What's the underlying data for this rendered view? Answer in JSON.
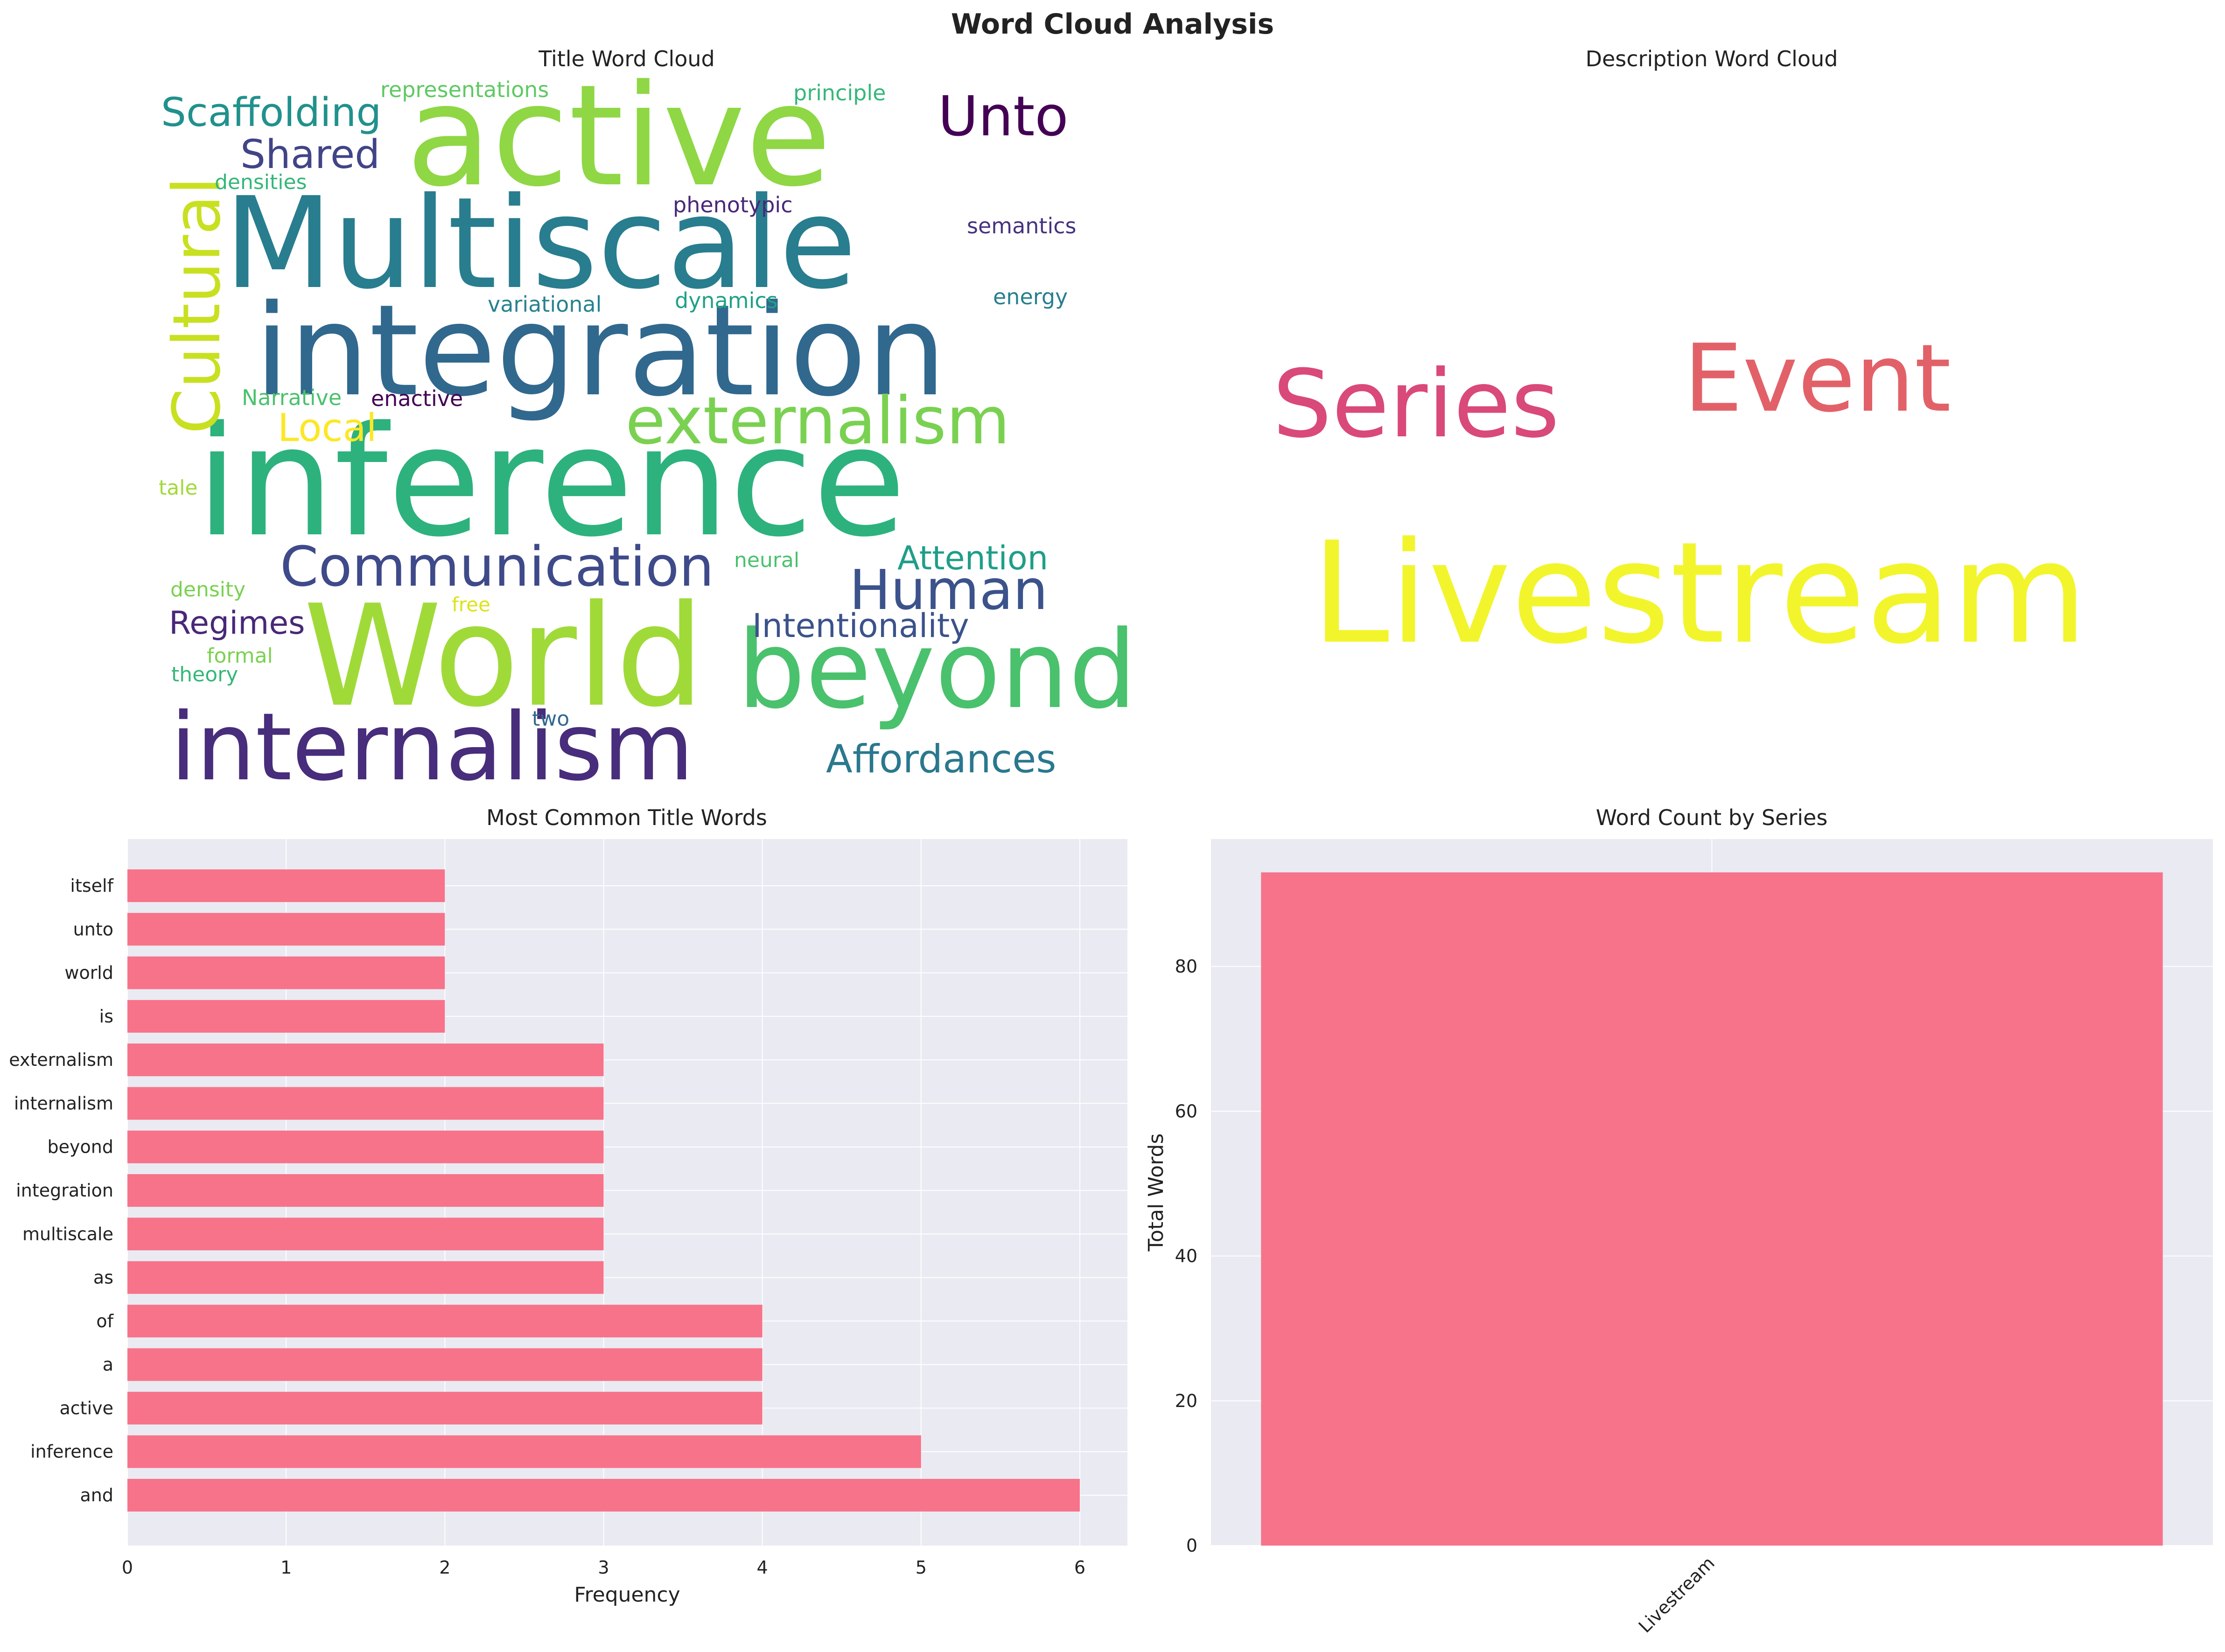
{
  "figure": {
    "title": "Word Cloud Analysis"
  },
  "chart_data": [
    {
      "type": "wordcloud",
      "title": "Title Word Cloud",
      "words": [
        {
          "text": "inference",
          "size": 1.0,
          "color": "#2db27d",
          "rotate": 0
        },
        {
          "text": "active",
          "size": 0.95,
          "color": "#8fd744",
          "rotate": 0
        },
        {
          "text": "World",
          "size": 0.95,
          "color": "#a0da39",
          "rotate": 0
        },
        {
          "text": "Multiscale",
          "size": 0.9,
          "color": "#287d8e",
          "rotate": 0
        },
        {
          "text": "integration",
          "size": 0.9,
          "color": "#31688e",
          "rotate": 0
        },
        {
          "text": "internalism",
          "size": 0.72,
          "color": "#472d7b",
          "rotate": 0
        },
        {
          "text": "beyond",
          "size": 0.7,
          "color": "#4ac16d",
          "rotate": 0
        },
        {
          "text": "externalism",
          "size": 0.48,
          "color": "#7ad151",
          "rotate": 0
        },
        {
          "text": "Cultural",
          "size": 0.42,
          "color": "#c8e020",
          "rotate": 90
        },
        {
          "text": "Human",
          "size": 0.42,
          "color": "#3b528b",
          "rotate": 0
        },
        {
          "text": "Unto",
          "size": 0.42,
          "color": "#440154",
          "rotate": 0
        },
        {
          "text": "Communication",
          "size": 0.42,
          "color": "#3e4a89",
          "rotate": 0
        },
        {
          "text": "Scaffolding",
          "size": 0.3,
          "color": "#21918c",
          "rotate": 0
        },
        {
          "text": "Shared",
          "size": 0.3,
          "color": "#414487",
          "rotate": 0
        },
        {
          "text": "Affordances",
          "size": 0.3,
          "color": "#2a788e",
          "rotate": 0
        },
        {
          "text": "Local",
          "size": 0.3,
          "color": "#fde725",
          "rotate": 0
        },
        {
          "text": "Attention",
          "size": 0.26,
          "color": "#1f9e89",
          "rotate": 0
        },
        {
          "text": "Intentionality",
          "size": 0.26,
          "color": "#3b528b",
          "rotate": 0
        },
        {
          "text": "Regimes",
          "size": 0.26,
          "color": "#482878",
          "rotate": 0
        },
        {
          "text": "representations",
          "size": 0.16,
          "color": "#5ec962",
          "rotate": 0
        },
        {
          "text": "principle",
          "size": 0.16,
          "color": "#35b779",
          "rotate": 0
        },
        {
          "text": "densities",
          "size": 0.14,
          "color": "#35b779",
          "rotate": 0
        },
        {
          "text": "phenotypic",
          "size": 0.16,
          "color": "#482878",
          "rotate": 0
        },
        {
          "text": "semantics",
          "size": 0.16,
          "color": "#46327e",
          "rotate": 0
        },
        {
          "text": "variational",
          "size": 0.16,
          "color": "#26828e",
          "rotate": 0
        },
        {
          "text": "dynamics",
          "size": 0.16,
          "color": "#1fa187",
          "rotate": 0
        },
        {
          "text": "energy",
          "size": 0.16,
          "color": "#277f8e",
          "rotate": 0
        },
        {
          "text": "Narrative",
          "size": 0.16,
          "color": "#4ac16d",
          "rotate": 0
        },
        {
          "text": "enactive",
          "size": 0.16,
          "color": "#440154",
          "rotate": 0
        },
        {
          "text": "tale",
          "size": 0.14,
          "color": "#a0da39",
          "rotate": 0
        },
        {
          "text": "neural",
          "size": 0.14,
          "color": "#4ac16d",
          "rotate": 0
        },
        {
          "text": "density",
          "size": 0.14,
          "color": "#7ad151",
          "rotate": 0
        },
        {
          "text": "free",
          "size": 0.14,
          "color": "#dde318",
          "rotate": 0
        },
        {
          "text": "formal",
          "size": 0.14,
          "color": "#7ad151",
          "rotate": 0
        },
        {
          "text": "theory",
          "size": 0.14,
          "color": "#35b779",
          "rotate": 0
        },
        {
          "text": "two",
          "size": 0.14,
          "color": "#31688e",
          "rotate": 0
        }
      ]
    },
    {
      "type": "wordcloud",
      "title": "Description Word Cloud",
      "words": [
        {
          "text": "Livestream",
          "size": 1.0,
          "color": "#f2f52b",
          "rotate": 0
        },
        {
          "text": "Series",
          "size": 0.62,
          "color": "#d9497a",
          "rotate": 0
        },
        {
          "text": "Event",
          "size": 0.62,
          "color": "#e26169",
          "rotate": 0
        }
      ]
    },
    {
      "type": "bar",
      "orientation": "horizontal",
      "title": "Most Common Title Words",
      "xlabel": "Frequency",
      "ylabel": "",
      "xlim": [
        0,
        6.3
      ],
      "xticks": [
        0,
        1,
        2,
        3,
        4,
        5,
        6
      ],
      "grid": true,
      "bar_color": "#f7738a",
      "categories": [
        "and",
        "inference",
        "active",
        "a",
        "of",
        "as",
        "multiscale",
        "integration",
        "beyond",
        "internalism",
        "externalism",
        "is",
        "world",
        "unto",
        "itself"
      ],
      "values": [
        6,
        5,
        4,
        4,
        4,
        3,
        3,
        3,
        3,
        3,
        3,
        2,
        2,
        2,
        2
      ]
    },
    {
      "type": "bar",
      "orientation": "vertical",
      "title": "Word Count by Series",
      "xlabel": "",
      "ylabel": "Total Words",
      "ylim": [
        0,
        97.6
      ],
      "yticks": [
        0,
        20,
        40,
        60,
        80
      ],
      "grid": true,
      "bar_color": "#f7738a",
      "categories": [
        "Livestream"
      ],
      "values": [
        93
      ]
    }
  ]
}
